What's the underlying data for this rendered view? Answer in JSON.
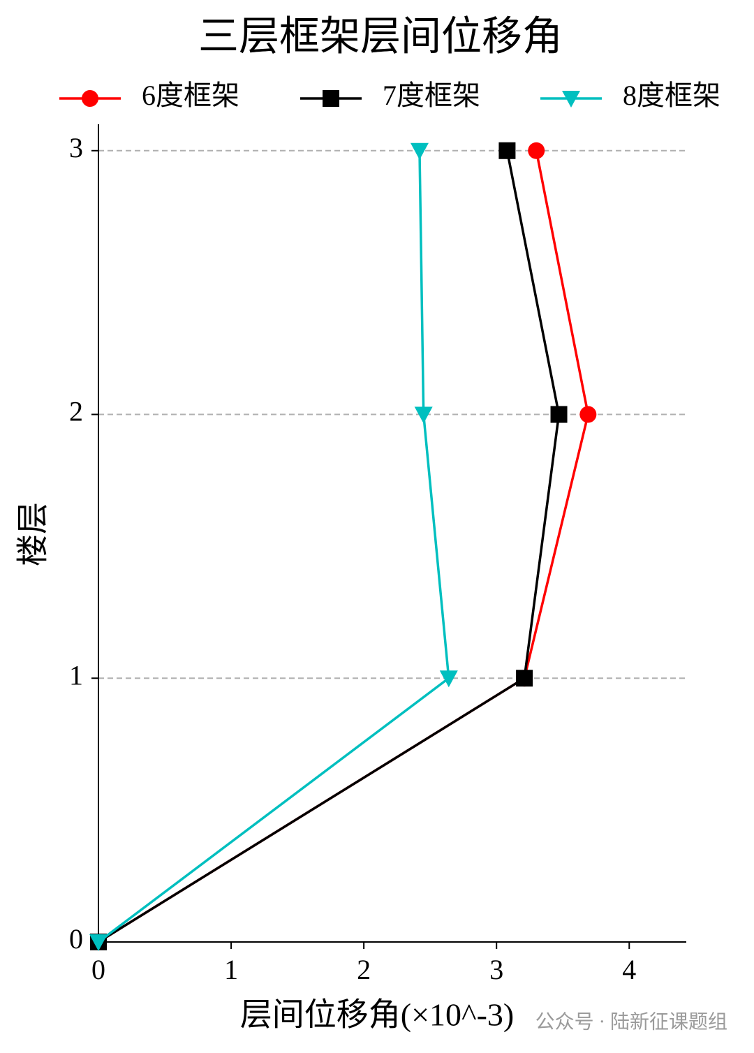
{
  "chart_data": {
    "type": "line",
    "orientation": "horizontal",
    "title": "三层框架层间位移角",
    "xlabel": "层间位移角(×10^-3)",
    "ylabel": "楼层",
    "y": [
      0,
      1,
      2,
      3
    ],
    "series": [
      {
        "name": "6度框架",
        "color": "#ff0000",
        "marker": "circle",
        "values": [
          0,
          3.21,
          3.69,
          3.3
        ]
      },
      {
        "name": "7度框架",
        "color": "#000000",
        "marker": "square",
        "values": [
          0,
          3.21,
          3.47,
          3.08
        ]
      },
      {
        "name": "8度框架",
        "color": "#00bfbf",
        "marker": "triangle-down",
        "values": [
          0,
          2.64,
          2.45,
          2.42
        ]
      }
    ],
    "xlim": [
      0,
      4.43
    ],
    "xticks": [
      0,
      1,
      2,
      3,
      4
    ],
    "ylim": [
      0,
      3.1
    ],
    "yticks": [
      0,
      1,
      2,
      3
    ],
    "grid": "y",
    "legend": "top",
    "annotation": "公众号 · 陆新征课题组"
  }
}
